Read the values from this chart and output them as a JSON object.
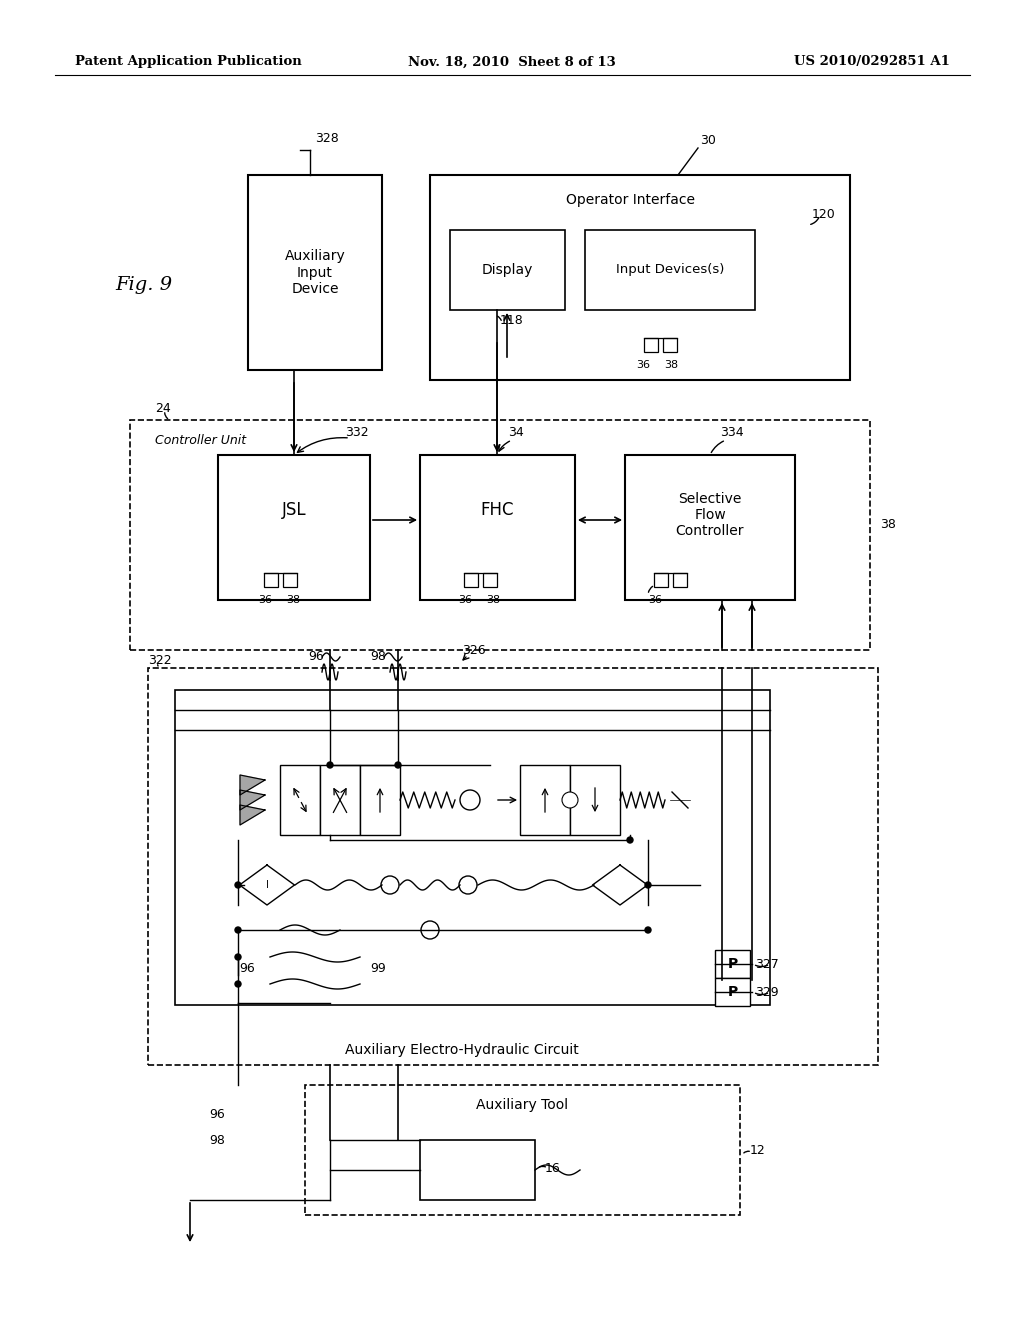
{
  "bg_color": "#ffffff",
  "lc": "#000000",
  "header_left": "Patent Application Publication",
  "header_mid": "Nov. 18, 2010  Sheet 8 of 13",
  "header_right": "US 2010/0292851 A1",
  "fig_label": "Fig. 9"
}
